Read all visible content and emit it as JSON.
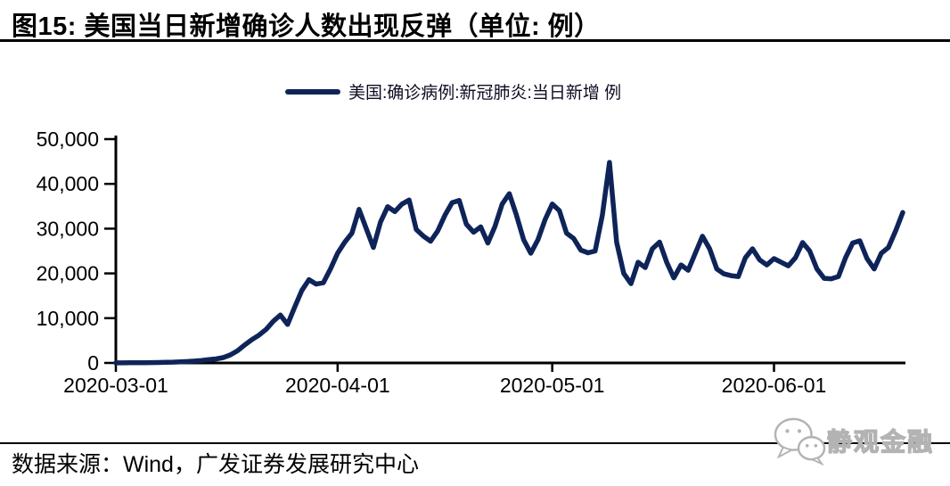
{
  "header": {
    "title": "图15:  美国当日新增确诊人数出现反弹（单位:  例）"
  },
  "legend": {
    "label": "美国:确诊病例:新冠肺炎:当日新增 例"
  },
  "footer": {
    "source": "数据来源：Wind，广发证券发展研究中心"
  },
  "watermark": {
    "text": "静观金融",
    "icon": "wechat-chat-bubbles-icon"
  },
  "colors": {
    "series_line": "#0E2459",
    "axis": "#000000",
    "watermark_gray": "#b3b3b3"
  },
  "chart_data": {
    "type": "line",
    "title": "图15: 美国当日新增确诊人数出现反弹（单位: 例）",
    "xlabel": "",
    "ylabel": "",
    "ylim": [
      0,
      50000
    ],
    "grid": false,
    "legend_position": "top-center",
    "line_color": "#0E2459",
    "y_ticks": [
      0,
      10000,
      20000,
      30000,
      40000,
      50000
    ],
    "y_tick_labels": [
      "0",
      "10,000",
      "20,000",
      "30,000",
      "40,000",
      "50,000"
    ],
    "x_tick_labels": [
      "2020-03-01",
      "2020-04-01",
      "2020-05-01",
      "2020-06-01"
    ],
    "x_tick_day_index": [
      0,
      31,
      61,
      92
    ],
    "series": [
      {
        "name": "美国:确诊病例:新冠肺炎:当日新增 例",
        "start_date": "2020-03-01",
        "end_date": "2020-06-19",
        "frequency": "daily",
        "values": [
          20,
          25,
          30,
          45,
          60,
          80,
          100,
          130,
          180,
          250,
          320,
          420,
          550,
          750,
          900,
          1200,
          1800,
          2700,
          4000,
          5200,
          6200,
          7500,
          9300,
          10700,
          8600,
          12500,
          16200,
          18600,
          17600,
          17900,
          21000,
          24500,
          27000,
          29000,
          34300,
          30000,
          25800,
          31500,
          34900,
          33800,
          35500,
          36400,
          29800,
          28300,
          27200,
          29500,
          33000,
          35800,
          36300,
          31000,
          29200,
          30400,
          26800,
          30500,
          35500,
          37800,
          33000,
          27500,
          24500,
          27500,
          32000,
          35500,
          34000,
          29000,
          27800,
          25200,
          24600,
          25000,
          33000,
          44800,
          27000,
          20000,
          17700,
          22500,
          21300,
          25500,
          27000,
          22500,
          19000,
          21900,
          20700,
          24500,
          28300,
          25500,
          21000,
          19900,
          19500,
          19300,
          23500,
          25500,
          23000,
          21900,
          23300,
          22500,
          21700,
          23500,
          26900,
          25000,
          21000,
          18900,
          18800,
          19300,
          23500,
          26800,
          27300,
          23300,
          21000,
          24500,
          25800,
          29500,
          33600
        ]
      }
    ]
  }
}
